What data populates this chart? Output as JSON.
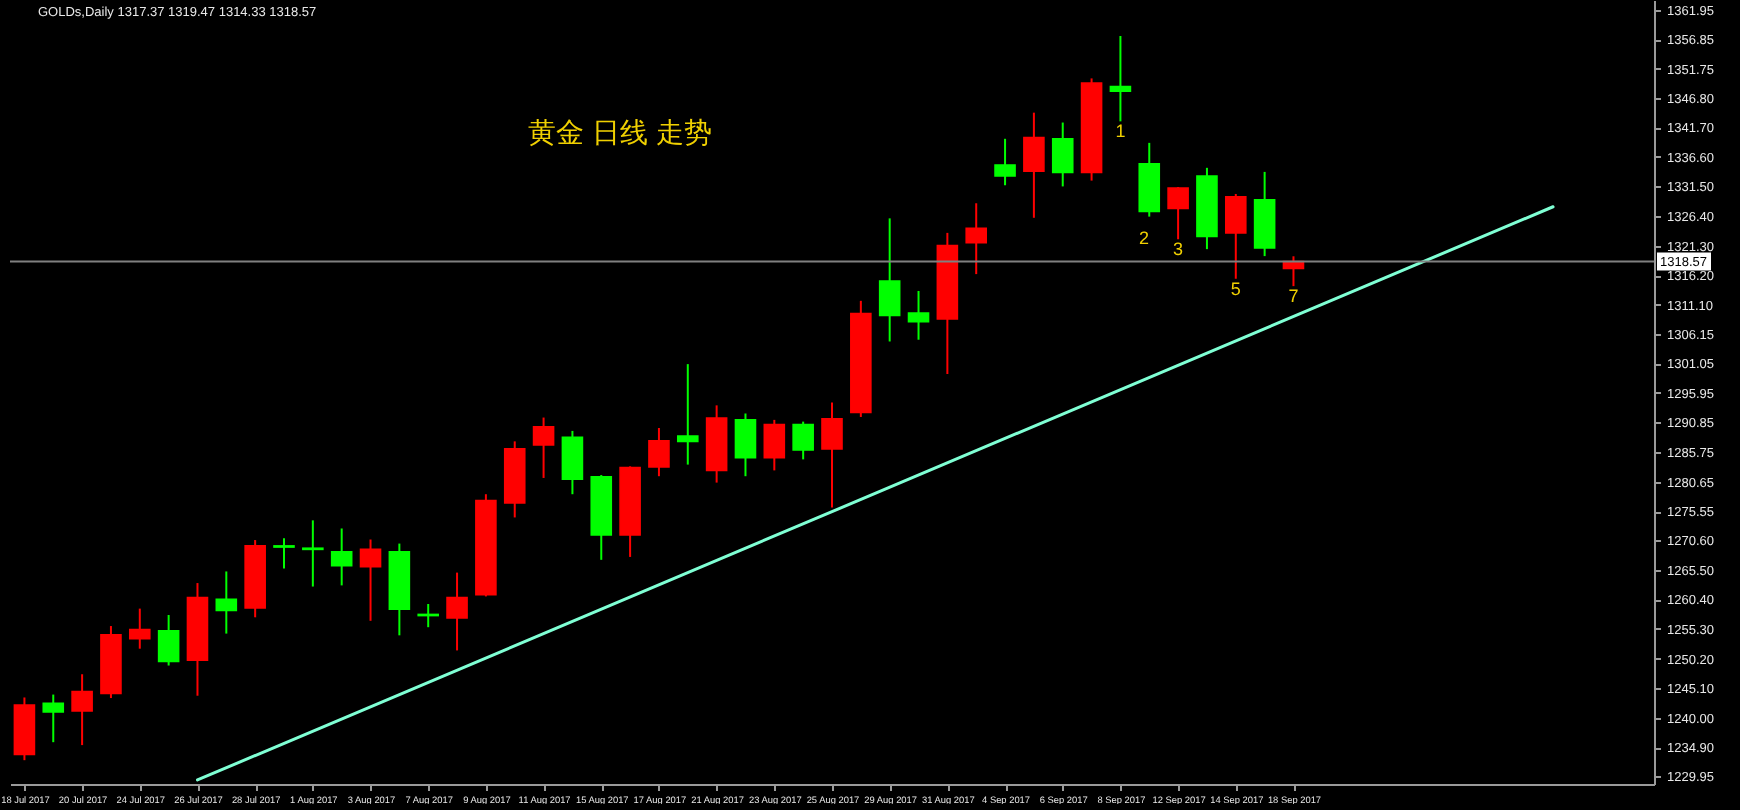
{
  "chart_data": {
    "type": "candlestick",
    "title": "GOLDs,Daily 1317.37 1319.47 1314.33 1318.57",
    "categories": [
      "18 Jul 2017",
      null,
      "20 Jul 2017",
      null,
      "24 Jul 2017",
      null,
      "26 Jul 2017",
      null,
      "28 Jul 2017",
      null,
      "1 Aug 2017",
      null,
      "3 Aug 2017",
      null,
      "7 Aug 2017",
      null,
      "9 Aug 2017",
      null,
      "11 Aug 2017",
      null,
      "15 Aug 2017",
      null,
      "17 Aug 2017",
      null,
      "21 Aug 2017",
      null,
      "23 Aug 2017",
      null,
      "25 Aug 2017",
      null,
      "29 Aug 2017",
      null,
      "31 Aug 2017",
      null,
      "4 Sep 2017",
      null,
      "6 Sep 2017",
      null,
      "8 Sep 2017",
      null,
      "12 Sep 2017",
      null,
      "14 Sep 2017",
      null,
      "18 Sep 2017",
      null,
      null,
      null,
      null,
      null,
      null,
      null,
      null,
      null,
      null,
      null,
      null
    ],
    "ohlc": [
      [
        1233.7,
        1243.5,
        1232.7,
        1242.2
      ],
      [
        1242.5,
        1244.0,
        1235.8,
        1241.0
      ],
      [
        1241.2,
        1247.5,
        1235.3,
        1244.5
      ],
      [
        1244.2,
        1255.8,
        1243.4,
        1254.3
      ],
      [
        1253.6,
        1258.8,
        1251.9,
        1255.2
      ],
      [
        1255.0,
        1257.7,
        1249.0,
        1249.7
      ],
      [
        1249.9,
        1263.2,
        1243.8,
        1260.7
      ],
      [
        1260.4,
        1265.2,
        1254.5,
        1258.5
      ],
      [
        1258.9,
        1270.6,
        1257.3,
        1269.6
      ],
      [
        1269.6,
        1270.9,
        1265.7,
        1269.4
      ],
      [
        1269.2,
        1274.0,
        1262.6,
        1269.0
      ],
      [
        1268.6,
        1272.6,
        1262.8,
        1266.2
      ],
      [
        1266.0,
        1270.7,
        1256.7,
        1269.0
      ],
      [
        1268.6,
        1270.0,
        1254.2,
        1258.7
      ],
      [
        1257.8,
        1259.6,
        1255.6,
        1257.6
      ],
      [
        1257.2,
        1265.0,
        1251.6,
        1260.7
      ],
      [
        1261.2,
        1278.5,
        1260.9,
        1277.4
      ],
      [
        1277.0,
        1287.6,
        1274.5,
        1286.3
      ],
      [
        1287.0,
        1291.7,
        1281.3,
        1290.1
      ],
      [
        1288.3,
        1289.4,
        1278.5,
        1281.1
      ],
      [
        1281.5,
        1281.8,
        1267.2,
        1271.5
      ],
      [
        1271.5,
        1283.3,
        1267.7,
        1283.1
      ],
      [
        1283.2,
        1289.9,
        1281.6,
        1287.7
      ],
      [
        1288.5,
        1300.9,
        1283.6,
        1287.6
      ],
      [
        1282.6,
        1293.8,
        1280.5,
        1291.6
      ],
      [
        1291.3,
        1292.4,
        1281.6,
        1284.8
      ],
      [
        1284.8,
        1291.3,
        1282.6,
        1290.5
      ],
      [
        1290.5,
        1291.0,
        1284.5,
        1286.1
      ],
      [
        1286.3,
        1294.3,
        1276.2,
        1291.5
      ],
      [
        1292.6,
        1311.8,
        1291.8,
        1309.6
      ],
      [
        1315.2,
        1326.0,
        1304.8,
        1309.3
      ],
      [
        1309.7,
        1313.5,
        1305.1,
        1308.2
      ],
      [
        1308.7,
        1323.5,
        1299.2,
        1321.3
      ],
      [
        1321.8,
        1328.6,
        1316.4,
        1324.3
      ],
      [
        1335.2,
        1339.7,
        1331.7,
        1333.3
      ],
      [
        1334.1,
        1344.2,
        1326.1,
        1339.9
      ],
      [
        1339.7,
        1342.5,
        1331.5,
        1333.9
      ],
      [
        1333.9,
        1350.1,
        1332.5,
        1349.3
      ],
      [
        1348.7,
        1357.4,
        1342.7,
        1347.9
      ],
      [
        1335.4,
        1339.0,
        1326.3,
        1327.2
      ],
      [
        1327.7,
        1331.4,
        1322.4,
        1331.2
      ],
      [
        1333.3,
        1334.7,
        1320.7,
        1322.9
      ],
      [
        1323.5,
        1330.2,
        1315.6,
        1329.7
      ],
      [
        1329.2,
        1334.0,
        1319.5,
        1320.9
      ],
      [
        1317.37,
        1319.47,
        1314.33,
        1318.57
      ],
      null,
      null,
      null,
      null,
      null,
      null,
      null,
      null,
      null,
      null,
      null,
      null
    ],
    "colors": [
      "#ff0000",
      "#00ff00",
      "#ff0000",
      "#ff0000",
      "#ff0000",
      "#00ff00",
      "#ff0000",
      "#00ff00",
      "#ff0000",
      "#00ff00",
      "#00ff00",
      "#00ff00",
      "#ff0000",
      "#00ff00",
      "#00ff00",
      "#ff0000",
      "#ff0000",
      "#ff0000",
      "#ff0000",
      "#00ff00",
      "#00ff00",
      "#ff0000",
      "#ff0000",
      "#00ff00",
      "#ff0000",
      "#00ff00",
      "#ff0000",
      "#00ff00",
      "#ff0000",
      "#ff0000",
      "#00ff00",
      "#00ff00",
      "#ff0000",
      "#ff0000",
      "#00ff00",
      "#ff0000",
      "#00ff00",
      "#ff0000",
      "#00ff00",
      "#00ff00",
      "#ff0000",
      "#00ff00",
      "#ff0000",
      "#00ff00",
      "#ff0000",
      null,
      null,
      null,
      null,
      null,
      null,
      null,
      null,
      null,
      null,
      null,
      null
    ],
    "series": [
      {
        "type": "line",
        "values": [
          null,
          null,
          null,
          null,
          null,
          null,
          1229.3,
          null,
          null,
          null,
          null,
          null,
          null,
          null,
          null,
          null,
          null,
          null,
          null,
          null,
          null,
          null,
          null,
          null,
          null,
          null,
          null,
          null,
          null,
          null,
          null,
          null,
          null,
          null,
          null,
          null,
          null,
          null,
          null,
          null,
          null,
          null,
          null,
          null,
          null,
          null,
          null,
          null,
          null,
          null,
          null,
          null,
          null,
          1328.0,
          null,
          null,
          null
        ],
        "color": "#7fffd4"
      }
    ],
    "ylim": [
      1228.6,
      1363.6
    ],
    "yticks": [
      1361.95,
      1356.85,
      1351.75,
      {
        "value": 1346.8,
        "label": "1346.80"
      },
      {
        "value": 1341.7,
        "label": "1341.70"
      },
      {
        "value": 1336.6,
        "label": "1336.60"
      },
      {
        "value": 1331.5,
        "label": "1331.50"
      },
      {
        "value": 1326.4,
        "label": "1326.40"
      },
      {
        "value": 1321.3,
        "label": "1321.30"
      },
      {
        "value": 1316.2,
        "label": "1316.20"
      },
      {
        "value": 1311.1,
        "label": "1311.10"
      },
      1306.15,
      1301.05,
      1295.95,
      1290.85,
      1285.75,
      1280.65,
      1275.55,
      {
        "value": 1270.6,
        "label": "1270.60"
      },
      {
        "value": 1265.5,
        "label": "1265.50"
      },
      {
        "value": 1260.4,
        "label": "1260.40"
      },
      {
        "value": 1255.3,
        "label": "1255.30"
      },
      {
        "value": 1250.2,
        "label": "1250.20"
      },
      {
        "value": 1245.1,
        "label": "1245.10"
      },
      {
        "value": 1240,
        "label": "1240.00"
      },
      {
        "value": 1234.9,
        "label": "1234.90"
      },
      1229.95
    ],
    "ref_lines": [
      {
        "axis": "y",
        "value": 1318.57,
        "label": "1318.57",
        "color": "#808080"
      }
    ],
    "annotations": [
      "黄金 日线 走势",
      "2",
      {
        "text": "1",
        "x": "8 Sep 2017",
        "y": 1342.7
      },
      {
        "text": "3",
        "x": "12 Sep 2017",
        "y": 1322.4
      },
      {
        "text": "5",
        "x": "14 Sep 2017",
        "y": 1315.6
      },
      {
        "text": "7",
        "x": "18 Sep 2017",
        "y": 1314.33
      }
    ],
    "grid": false
  }
}
